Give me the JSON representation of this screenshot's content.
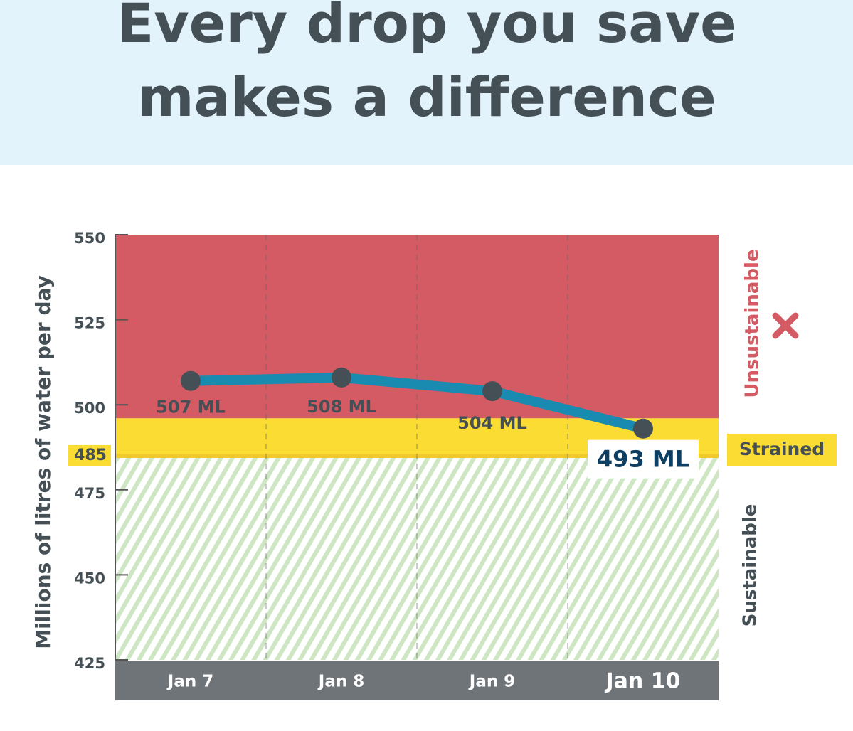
{
  "chart_data": {
    "type": "line",
    "title": [
      "Every drop you save",
      "makes a difference"
    ],
    "y_label": "Millions of litres of water per day",
    "categories": [
      "Jan 7",
      "Jan 8",
      "Jan 9",
      "Jan 10"
    ],
    "series": [
      {
        "color": "#1a8bb0",
        "values": [
          507,
          508,
          504,
          493
        ],
        "value_labels": [
          "507 ML",
          "508 ML",
          "504 ML",
          "493 ML"
        ]
      }
    ],
    "ylim": [
      425,
      550
    ],
    "yticks": [
      425,
      450,
      475,
      500,
      525,
      550
    ],
    "threshold": 485,
    "zones": [
      {
        "name": "Unsustainable",
        "color": "#d45a64",
        "range": [
          496,
          550
        ]
      },
      {
        "name": "Strained",
        "color": "#fadc33",
        "range": [
          485,
          496
        ]
      },
      {
        "name": "Sustainable",
        "color": "#cfe6c4",
        "range": [
          425,
          485
        ]
      }
    ]
  }
}
